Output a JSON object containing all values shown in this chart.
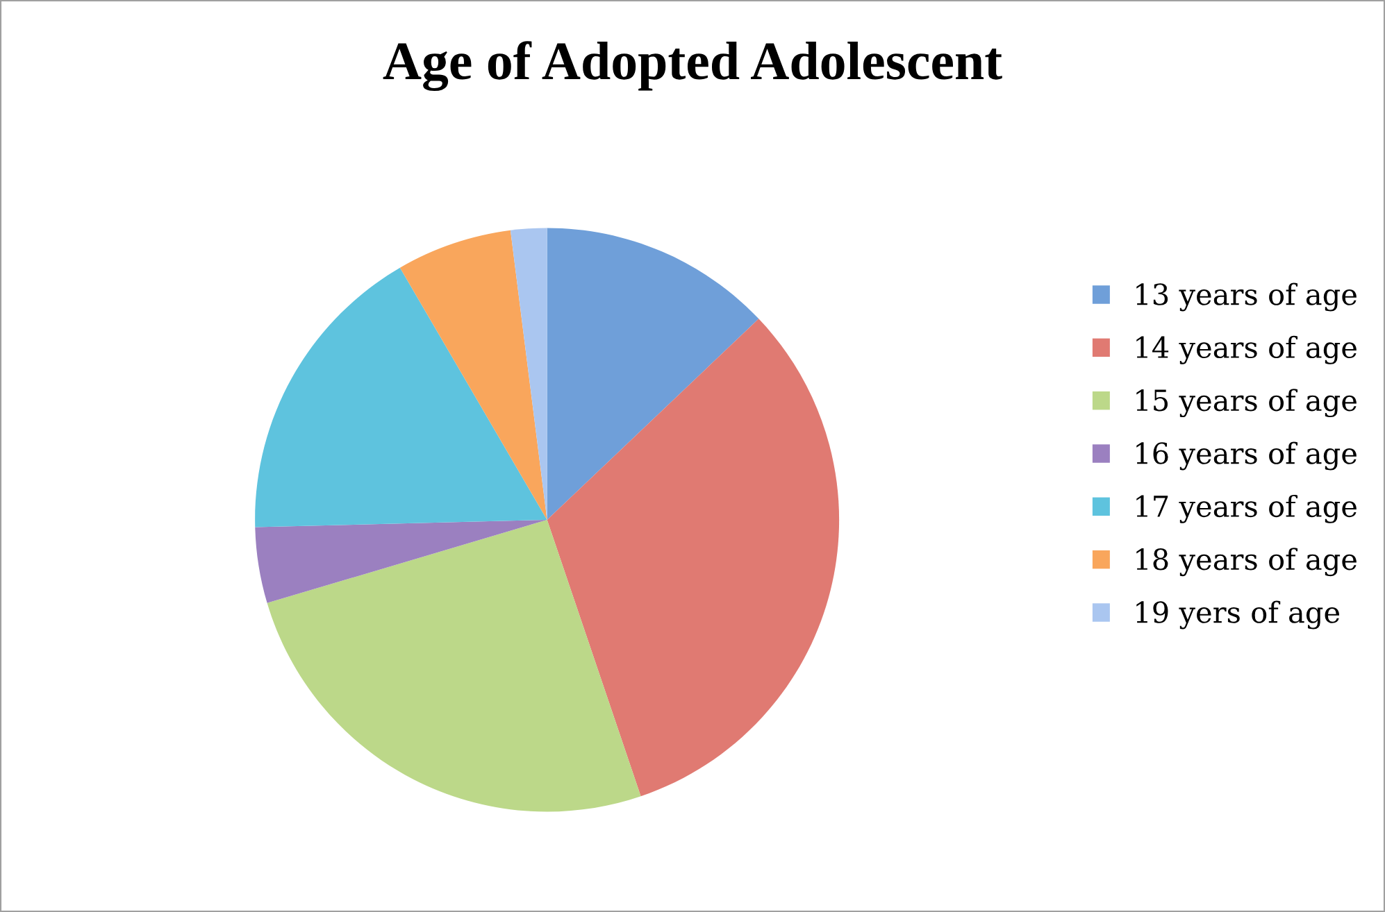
{
  "chart_data": {
    "type": "pie",
    "title": "Age of Adopted Adolescent",
    "categories": [
      "13 years of age",
      "14 years of age",
      "15 years of age",
      "16 years of age",
      "17 years of age",
      "18 years of age",
      "19 yers of age"
    ],
    "values": [
      12.9,
      31.9,
      25.6,
      4.2,
      17.0,
      6.4,
      2.0
    ],
    "colors": [
      "#6f9fd9",
      "#e07a72",
      "#bcd889",
      "#9b80c0",
      "#5ec3de",
      "#f9a65c",
      "#aac6f0"
    ],
    "legend": "right"
  }
}
